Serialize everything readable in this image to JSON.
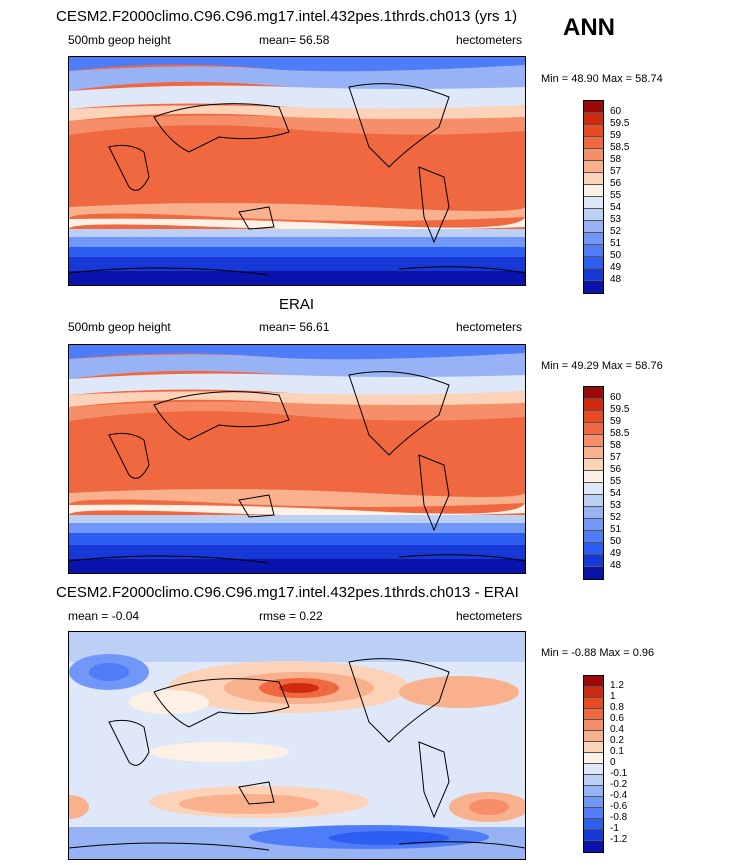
{
  "season": "ANN",
  "colors": {
    "abs": [
      "#08006e",
      "#0a14ad",
      "#1638d6",
      "#2d5ef2",
      "#4f7cf7",
      "#7197f8",
      "#97b3f5",
      "#bccff5",
      "#dfe8f8",
      "#fdf1e6",
      "#fcd2b8",
      "#f9b08d",
      "#f58e69",
      "#f0683f",
      "#e84a22",
      "#cf2a0f",
      "#9a0a0a"
    ],
    "diff": [
      "#08006e",
      "#0a14ad",
      "#1638d6",
      "#2d5ef2",
      "#4f7cf7",
      "#7197f8",
      "#97b3f5",
      "#bccff5",
      "#dfe8f8",
      "#fdf1e6",
      "#fcd2b8",
      "#f9b08d",
      "#f58e69",
      "#f0683f",
      "#e84a22",
      "#cf2a0f",
      "#9a0a0a"
    ]
  },
  "panels": [
    {
      "title": "CESM2.F2000climo.C96.C96.mg17.intel.432pes.1thrds.ch013 (yrs 1)",
      "variable": "500mb geop height",
      "mean": "mean=  56.58",
      "units": "hectometers",
      "minmax": "Min =  48.90 Max =  58.74",
      "colorbar_labels": [
        "60",
        "59.5",
        "59",
        "58.5",
        "58",
        "57",
        "56",
        "55",
        "54",
        "53",
        "52",
        "51",
        "50",
        "49",
        "48"
      ]
    },
    {
      "title": "ERAI",
      "variable": "500mb geop height",
      "mean": "mean=  56.61",
      "units": "hectometers",
      "minmax": "Min =  49.29 Max =  58.76",
      "colorbar_labels": [
        "60",
        "59.5",
        "59",
        "58.5",
        "58",
        "57",
        "56",
        "55",
        "54",
        "53",
        "52",
        "51",
        "50",
        "49",
        "48"
      ]
    },
    {
      "title": "CESM2.F2000climo.C96.C96.mg17.intel.432pes.1thrds.ch013 - ERAI",
      "variable": "mean =  -0.04",
      "mean": "rmse =   0.22",
      "units": "hectometers",
      "minmax": "Min =  -0.88 Max =   0.96",
      "colorbar_labels": [
        "1.2",
        "1",
        "0.8",
        "0.6",
        "0.4",
        "0.2",
        "0.1",
        "0",
        "-0.1",
        "-0.2",
        "-0.4",
        "-0.6",
        "-0.8",
        "-1",
        "-1.2"
      ]
    }
  ]
}
